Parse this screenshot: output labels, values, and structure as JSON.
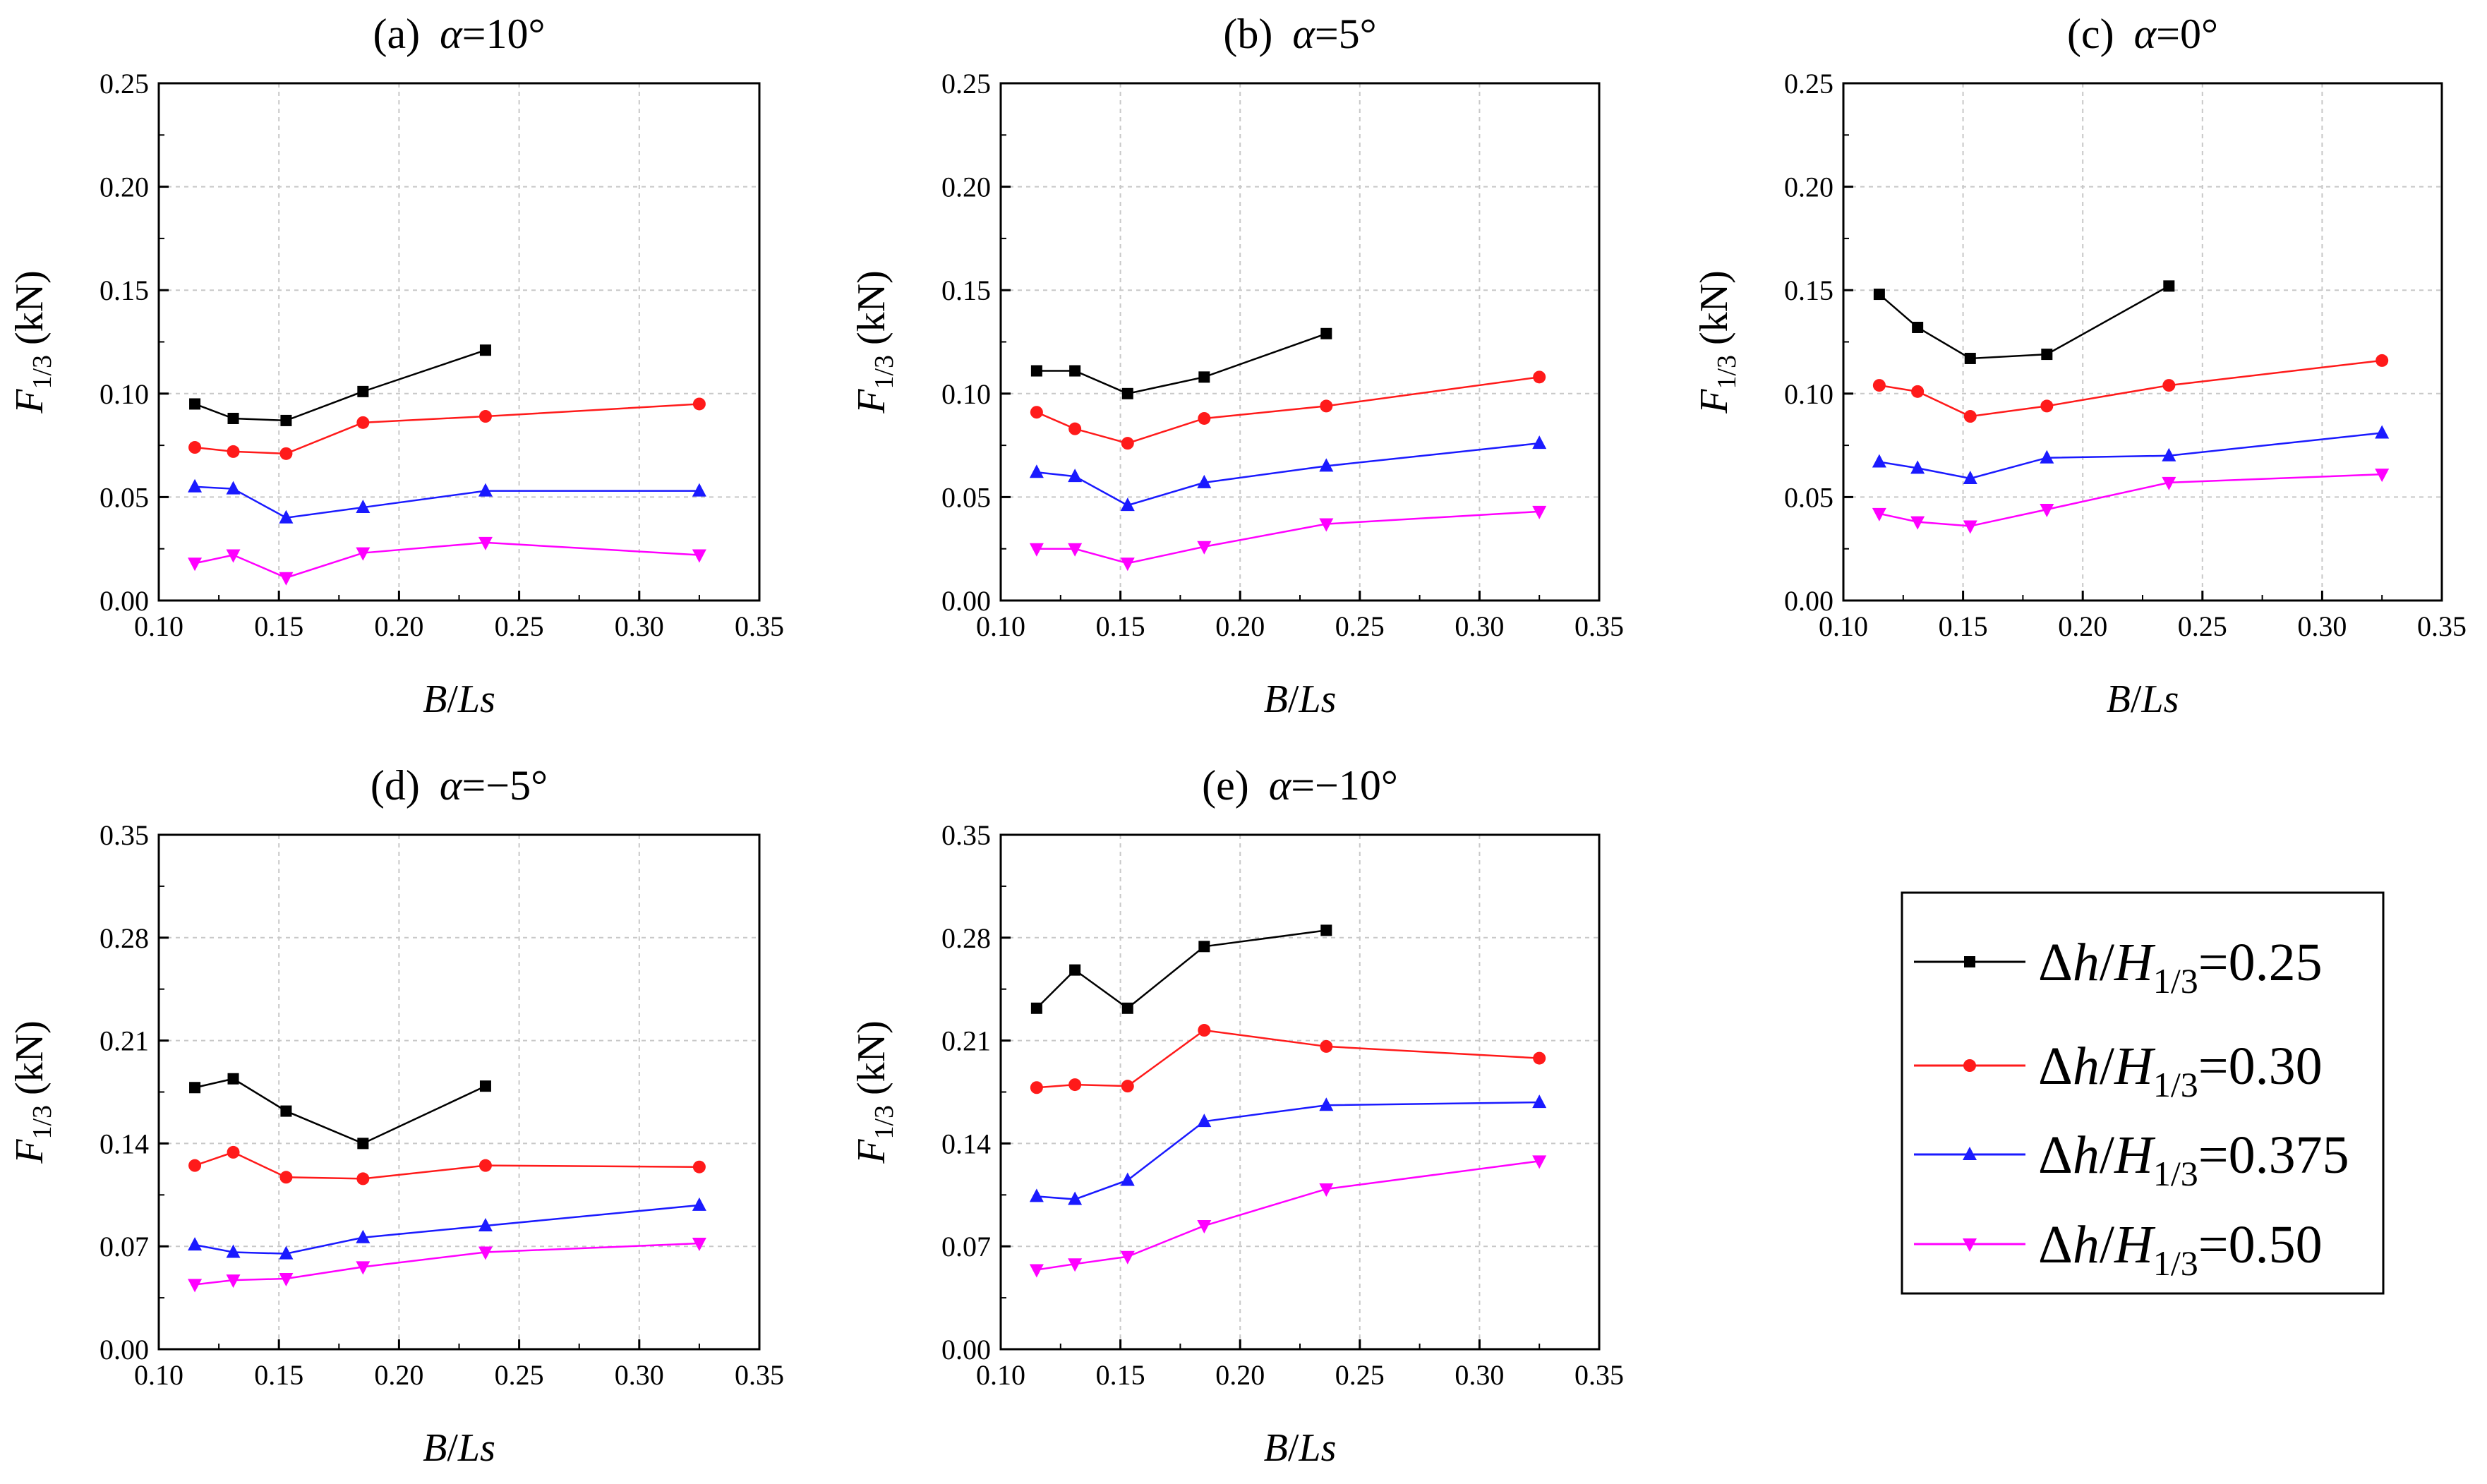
{
  "legend": [
    {
      "pre": "Δ",
      "var": "h",
      "sep": "/",
      "var2": "H",
      "sub": "1/3",
      "val": "=0.25"
    },
    {
      "pre": "Δ",
      "var": "h",
      "sep": "/",
      "var2": "H",
      "sub": "1/3",
      "val": "=0.30"
    },
    {
      "pre": "Δ",
      "var": "h",
      "sep": "/",
      "var2": "H",
      "sub": "1/3",
      "val": "=0.375"
    },
    {
      "pre": "Δ",
      "var": "h",
      "sep": "/",
      "var2": "H",
      "sub": "1/3",
      "val": "=0.50"
    }
  ],
  "chart_data": [
    {
      "type": "line",
      "title": {
        "label": "(a)",
        "sym": "α",
        "val": "=10°"
      },
      "xlabel": {
        "var": "B",
        "sep": "/",
        "var2": "Ls"
      },
      "ylabel": {
        "var": "F",
        "sub": "1/3",
        "unit": "(kN)"
      },
      "xlim": [
        0.1,
        0.35
      ],
      "ylim": [
        0,
        0.25
      ],
      "xticks": [
        "0.10",
        "0.15",
        "0.20",
        "0.25",
        "0.30",
        "0.35"
      ],
      "yticks": [
        "0.00",
        "0.05",
        "0.10",
        "0.15",
        "0.20",
        "0.25"
      ],
      "series": [
        {
          "name": "Δh/H1/3=0.25",
          "color": "#000000",
          "marker": "square",
          "x": [
            0.115,
            0.131,
            0.153,
            0.185,
            0.236
          ],
          "values": [
            0.095,
            0.088,
            0.087,
            0.101,
            0.121
          ]
        },
        {
          "name": "Δh/H1/3=0.30",
          "color": "#ff1a1a",
          "marker": "circle",
          "x": [
            0.115,
            0.131,
            0.153,
            0.185,
            0.236,
            0.325
          ],
          "values": [
            0.074,
            0.072,
            0.071,
            0.086,
            0.089,
            0.095
          ]
        },
        {
          "name": "Δh/H1/3=0.375",
          "color": "#1a1aff",
          "marker": "triangle-up",
          "x": [
            0.115,
            0.131,
            0.153,
            0.185,
            0.236,
            0.325
          ],
          "values": [
            0.055,
            0.054,
            0.04,
            0.045,
            0.053,
            0.053
          ]
        },
        {
          "name": "Δh/H1/3=0.50",
          "color": "#ff00ff",
          "marker": "triangle-down",
          "x": [
            0.115,
            0.131,
            0.153,
            0.185,
            0.236,
            0.325
          ],
          "values": [
            0.018,
            0.022,
            0.011,
            0.023,
            0.028,
            0.022
          ]
        }
      ]
    },
    {
      "type": "line",
      "title": {
        "label": "(b)",
        "sym": "α",
        "val": "=5°"
      },
      "xlabel": {
        "var": "B",
        "sep": "/",
        "var2": "Ls"
      },
      "ylabel": {
        "var": "F",
        "sub": "1/3",
        "unit": "(kN)"
      },
      "xlim": [
        0.1,
        0.35
      ],
      "ylim": [
        0,
        0.25
      ],
      "xticks": [
        "0.10",
        "0.15",
        "0.20",
        "0.25",
        "0.30",
        "0.35"
      ],
      "yticks": [
        "0.00",
        "0.05",
        "0.10",
        "0.15",
        "0.20",
        "0.25"
      ],
      "series": [
        {
          "name": "Δh/H1/3=0.25",
          "color": "#000000",
          "marker": "square",
          "x": [
            0.115,
            0.131,
            0.153,
            0.185,
            0.236
          ],
          "values": [
            0.111,
            0.111,
            0.1,
            0.108,
            0.129
          ]
        },
        {
          "name": "Δh/H1/3=0.30",
          "color": "#ff1a1a",
          "marker": "circle",
          "x": [
            0.115,
            0.131,
            0.153,
            0.185,
            0.236,
            0.325
          ],
          "values": [
            0.091,
            0.083,
            0.076,
            0.088,
            0.094,
            0.108
          ]
        },
        {
          "name": "Δh/H1/3=0.375",
          "color": "#1a1aff",
          "marker": "triangle-up",
          "x": [
            0.115,
            0.131,
            0.153,
            0.185,
            0.236,
            0.325
          ],
          "values": [
            0.062,
            0.06,
            0.046,
            0.057,
            0.065,
            0.076
          ]
        },
        {
          "name": "Δh/H1/3=0.50",
          "color": "#ff00ff",
          "marker": "triangle-down",
          "x": [
            0.115,
            0.131,
            0.153,
            0.185,
            0.236,
            0.325
          ],
          "values": [
            0.025,
            0.025,
            0.018,
            0.026,
            0.037,
            0.043
          ]
        }
      ]
    },
    {
      "type": "line",
      "title": {
        "label": "(c)",
        "sym": "α",
        "val": "=0°"
      },
      "xlabel": {
        "var": "B",
        "sep": "/",
        "var2": "Ls"
      },
      "ylabel": {
        "var": "F",
        "sub": "1/3",
        "unit": "(kN)"
      },
      "xlim": [
        0.1,
        0.35
      ],
      "ylim": [
        0,
        0.25
      ],
      "xticks": [
        "0.10",
        "0.15",
        "0.20",
        "0.25",
        "0.30",
        "0.35"
      ],
      "yticks": [
        "0.00",
        "0.05",
        "0.10",
        "0.15",
        "0.20",
        "0.25"
      ],
      "series": [
        {
          "name": "Δh/H1/3=0.25",
          "color": "#000000",
          "marker": "square",
          "x": [
            0.115,
            0.131,
            0.153,
            0.185,
            0.236
          ],
          "values": [
            0.148,
            0.132,
            0.117,
            0.119,
            0.152
          ]
        },
        {
          "name": "Δh/H1/3=0.30",
          "color": "#ff1a1a",
          "marker": "circle",
          "x": [
            0.115,
            0.131,
            0.153,
            0.185,
            0.236,
            0.325
          ],
          "values": [
            0.104,
            0.101,
            0.089,
            0.094,
            0.104,
            0.116
          ]
        },
        {
          "name": "Δh/H1/3=0.375",
          "color": "#1a1aff",
          "marker": "triangle-up",
          "x": [
            0.115,
            0.131,
            0.153,
            0.185,
            0.236,
            0.325
          ],
          "values": [
            0.067,
            0.064,
            0.059,
            0.069,
            0.07,
            0.081
          ]
        },
        {
          "name": "Δh/H1/3=0.50",
          "color": "#ff00ff",
          "marker": "triangle-down",
          "x": [
            0.115,
            0.131,
            0.153,
            0.185,
            0.236,
            0.325
          ],
          "values": [
            0.042,
            0.038,
            0.036,
            0.044,
            0.057,
            0.061
          ]
        }
      ]
    },
    {
      "type": "line",
      "title": {
        "label": "(d)",
        "sym": "α",
        "val": "=−5°"
      },
      "xlabel": {
        "var": "B",
        "sep": "/",
        "var2": "Ls"
      },
      "ylabel": {
        "var": "F",
        "sub": "1/3",
        "unit": "(kN)"
      },
      "xlim": [
        0.1,
        0.35
      ],
      "ylim": [
        0,
        0.35
      ],
      "xticks": [
        "0.10",
        "0.15",
        "0.20",
        "0.25",
        "0.30",
        "0.35"
      ],
      "yticks": [
        "0.00",
        "0.07",
        "0.14",
        "0.21",
        "0.28",
        "0.35"
      ],
      "series": [
        {
          "name": "Δh/H1/3=0.25",
          "color": "#000000",
          "marker": "square",
          "x": [
            0.115,
            0.131,
            0.153,
            0.185,
            0.236
          ],
          "values": [
            0.178,
            0.184,
            0.162,
            0.14,
            0.179
          ]
        },
        {
          "name": "Δh/H1/3=0.30",
          "color": "#ff1a1a",
          "marker": "circle",
          "x": [
            0.115,
            0.131,
            0.153,
            0.185,
            0.236,
            0.325
          ],
          "values": [
            0.125,
            0.134,
            0.117,
            0.116,
            0.125,
            0.124
          ]
        },
        {
          "name": "Δh/H1/3=0.375",
          "color": "#1a1aff",
          "marker": "triangle-up",
          "x": [
            0.115,
            0.131,
            0.153,
            0.185,
            0.236,
            0.325
          ],
          "values": [
            0.071,
            0.066,
            0.065,
            0.076,
            0.084,
            0.098
          ]
        },
        {
          "name": "Δh/H1/3=0.50",
          "color": "#ff00ff",
          "marker": "triangle-down",
          "x": [
            0.115,
            0.131,
            0.153,
            0.185,
            0.236,
            0.325
          ],
          "values": [
            0.044,
            0.047,
            0.048,
            0.056,
            0.066,
            0.072
          ]
        }
      ]
    },
    {
      "type": "line",
      "title": {
        "label": "(e)",
        "sym": "α",
        "val": "=−10°"
      },
      "xlabel": {
        "var": "B",
        "sep": "/",
        "var2": "Ls"
      },
      "ylabel": {
        "var": "F",
        "sub": "1/3",
        "unit": "(kN)"
      },
      "xlim": [
        0.1,
        0.35
      ],
      "ylim": [
        0,
        0.35
      ],
      "xticks": [
        "0.10",
        "0.15",
        "0.20",
        "0.25",
        "0.30",
        "0.35"
      ],
      "yticks": [
        "0.00",
        "0.07",
        "0.14",
        "0.21",
        "0.28",
        "0.35"
      ],
      "series": [
        {
          "name": "Δh/H1/3=0.25",
          "color": "#000000",
          "marker": "square",
          "x": [
            0.115,
            0.131,
            0.153,
            0.185,
            0.236
          ],
          "values": [
            0.232,
            0.258,
            0.232,
            0.274,
            0.285
          ]
        },
        {
          "name": "Δh/H1/3=0.30",
          "color": "#ff1a1a",
          "marker": "circle",
          "x": [
            0.115,
            0.131,
            0.153,
            0.185,
            0.236,
            0.325
          ],
          "values": [
            0.178,
            0.18,
            0.179,
            0.217,
            0.206,
            0.198
          ]
        },
        {
          "name": "Δh/H1/3=0.375",
          "color": "#1a1aff",
          "marker": "triangle-up",
          "x": [
            0.115,
            0.131,
            0.153,
            0.185,
            0.236,
            0.325
          ],
          "values": [
            0.104,
            0.102,
            0.115,
            0.155,
            0.166,
            0.168
          ]
        },
        {
          "name": "Δh/H1/3=0.50",
          "color": "#ff00ff",
          "marker": "triangle-down",
          "x": [
            0.115,
            0.131,
            0.153,
            0.185,
            0.236,
            0.325
          ],
          "values": [
            0.054,
            0.058,
            0.063,
            0.084,
            0.109,
            0.128
          ]
        }
      ]
    }
  ]
}
